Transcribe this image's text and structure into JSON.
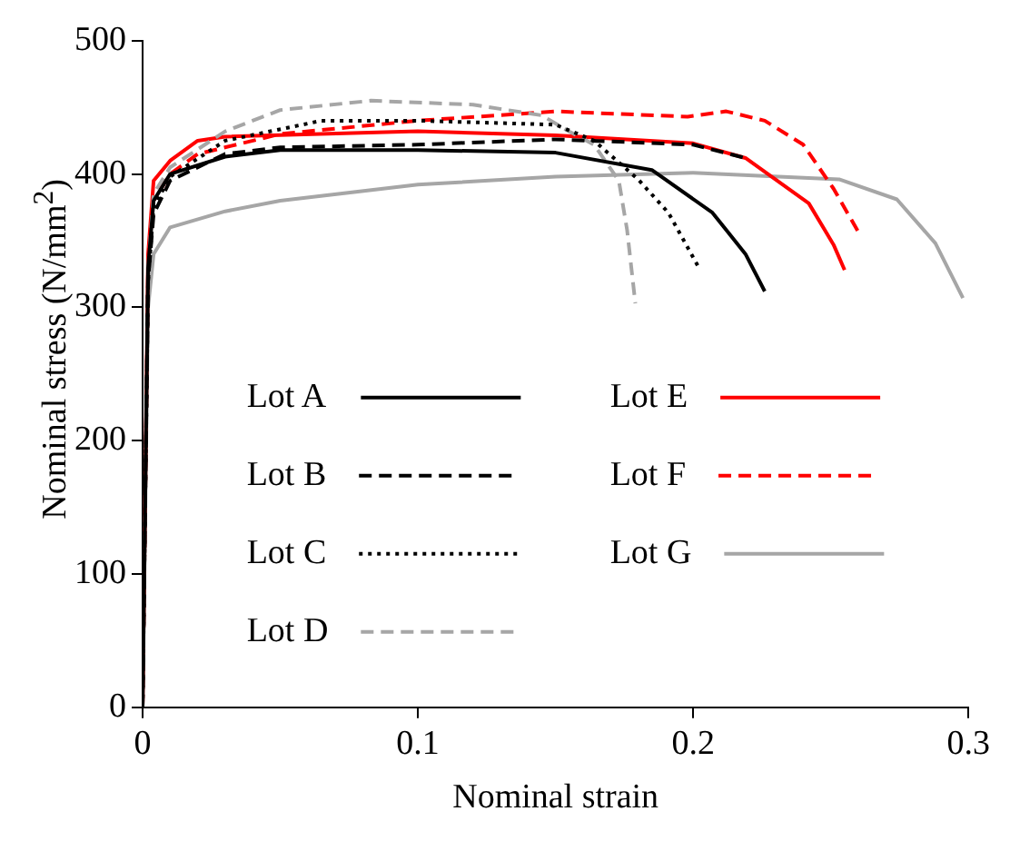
{
  "chart_data": {
    "type": "line",
    "xlabel": "Nominal strain",
    "ylabel": "Nominal stress (N/mm$^{2}$)",
    "xlim": [
      0,
      0.3
    ],
    "ylim": [
      0,
      500
    ],
    "xticks": [
      0,
      0.1,
      0.2,
      0.3
    ],
    "yticks": [
      0,
      100,
      200,
      300,
      400,
      500
    ],
    "grid": false,
    "legend": "bottom",
    "marker": "none",
    "series": [
      {
        "name": "Lot A",
        "color": "#000000",
        "line_style": "solid",
        "x": [
          0,
          0.002,
          0.004,
          0.01,
          0.03,
          0.05,
          0.1,
          0.15,
          0.185,
          0.207,
          0.219,
          0.226
        ],
        "values": [
          0,
          330,
          380,
          400,
          413,
          418,
          418,
          416,
          403,
          371,
          340,
          312
        ]
      },
      {
        "name": "Lot B",
        "color": "#000000",
        "line_style": "dashed",
        "x": [
          0,
          0.002,
          0.004,
          0.01,
          0.03,
          0.05,
          0.1,
          0.15,
          0.2,
          0.219
        ],
        "values": [
          0,
          320,
          370,
          395,
          415,
          420,
          422,
          426,
          422,
          412
        ]
      },
      {
        "name": "Lot C",
        "color": "#000000",
        "line_style": "dotted",
        "x": [
          0,
          0.002,
          0.004,
          0.01,
          0.03,
          0.065,
          0.1,
          0.15,
          0.164,
          0.18,
          0.191,
          0.202
        ],
        "values": [
          0,
          320,
          375,
          398,
          425,
          440,
          440,
          437,
          425,
          396,
          371,
          330
        ]
      },
      {
        "name": "Lot D",
        "color": "#a6a6a6",
        "line_style": "dashed",
        "x": [
          0,
          0.002,
          0.004,
          0.01,
          0.03,
          0.05,
          0.083,
          0.12,
          0.145,
          0.154,
          0.164,
          0.173,
          0.176,
          0.179
        ],
        "values": [
          0,
          330,
          385,
          405,
          432,
          448,
          455,
          452,
          444,
          433,
          422,
          395,
          358,
          303
        ]
      },
      {
        "name": "Lot E",
        "color": "#ff0000",
        "line_style": "solid",
        "x": [
          0,
          0.002,
          0.004,
          0.01,
          0.02,
          0.03,
          0.1,
          0.15,
          0.2,
          0.219,
          0.242,
          0.251,
          0.255
        ],
        "values": [
          0,
          340,
          395,
          410,
          425,
          428,
          432,
          429,
          423,
          412,
          378,
          347,
          328
        ]
      },
      {
        "name": "Lot F",
        "color": "#ff0000",
        "line_style": "dashed",
        "x": [
          0,
          0.002,
          0.004,
          0.01,
          0.02,
          0.05,
          0.1,
          0.15,
          0.198,
          0.212,
          0.226,
          0.24,
          0.251,
          0.261
        ],
        "values": [
          0,
          330,
          380,
          400,
          415,
          430,
          440,
          447,
          443,
          447,
          440,
          422,
          389,
          353
        ]
      },
      {
        "name": "Lot G",
        "color": "#a6a6a6",
        "line_style": "solid",
        "x": [
          0,
          0.002,
          0.004,
          0.01,
          0.03,
          0.05,
          0.1,
          0.15,
          0.2,
          0.253,
          0.274,
          0.288,
          0.298
        ],
        "values": [
          0,
          300,
          340,
          360,
          372,
          380,
          392,
          398,
          401,
          396,
          381,
          348,
          307
        ]
      }
    ]
  }
}
